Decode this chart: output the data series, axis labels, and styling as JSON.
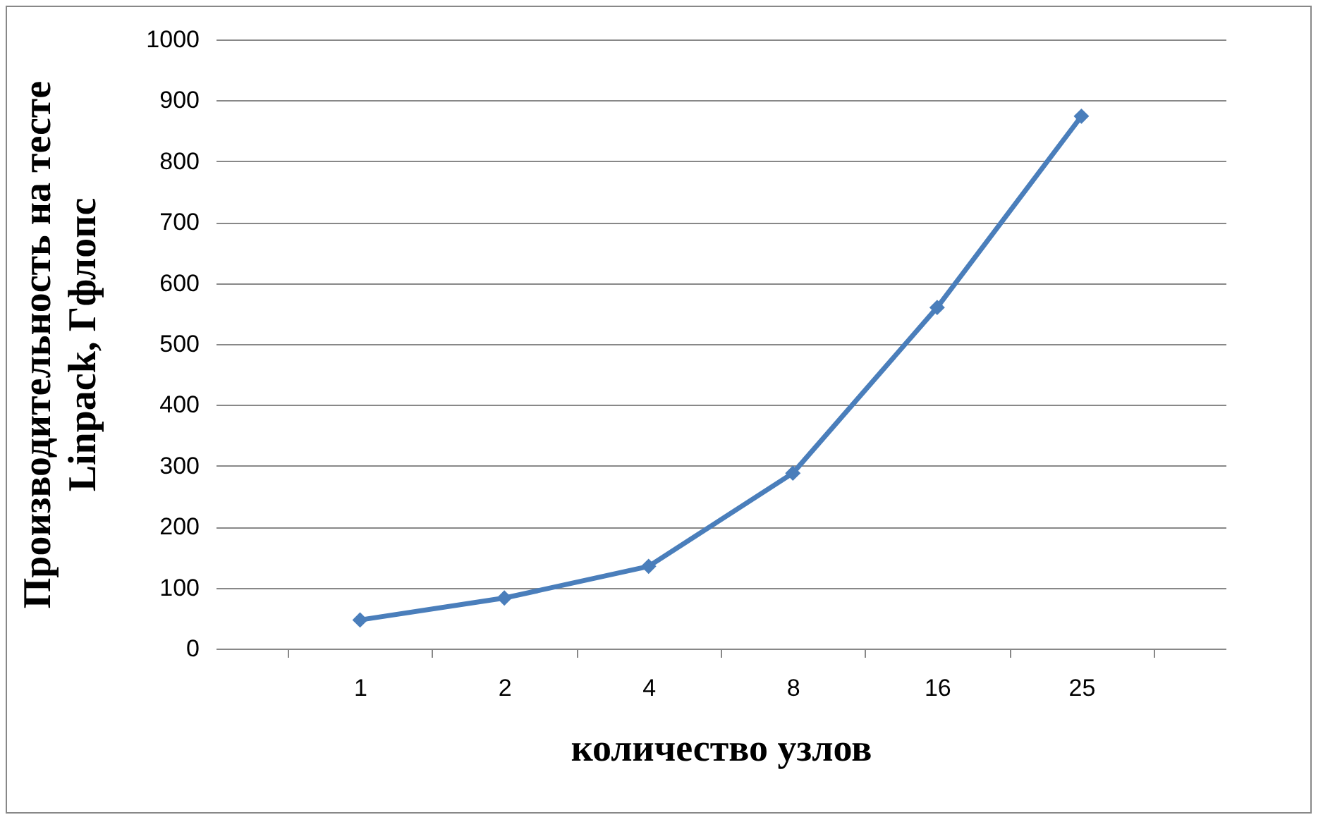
{
  "chart_data": {
    "type": "line",
    "xlabel": "количество узлов",
    "ylabel": "Производительность на тесте Linpack, Гфлопс",
    "categories": [
      "1",
      "2",
      "4",
      "8",
      "16",
      "25"
    ],
    "series": [
      {
        "color": "#4a7ebb",
        "values": [
          47,
          83,
          135,
          288,
          560,
          874
        ]
      }
    ],
    "ylim": [
      0,
      1000
    ],
    "yticks": [
      0,
      100,
      200,
      300,
      400,
      500,
      600,
      700,
      800,
      900,
      1000
    ],
    "grid": "y",
    "marker": "diamond",
    "legend": false
  }
}
